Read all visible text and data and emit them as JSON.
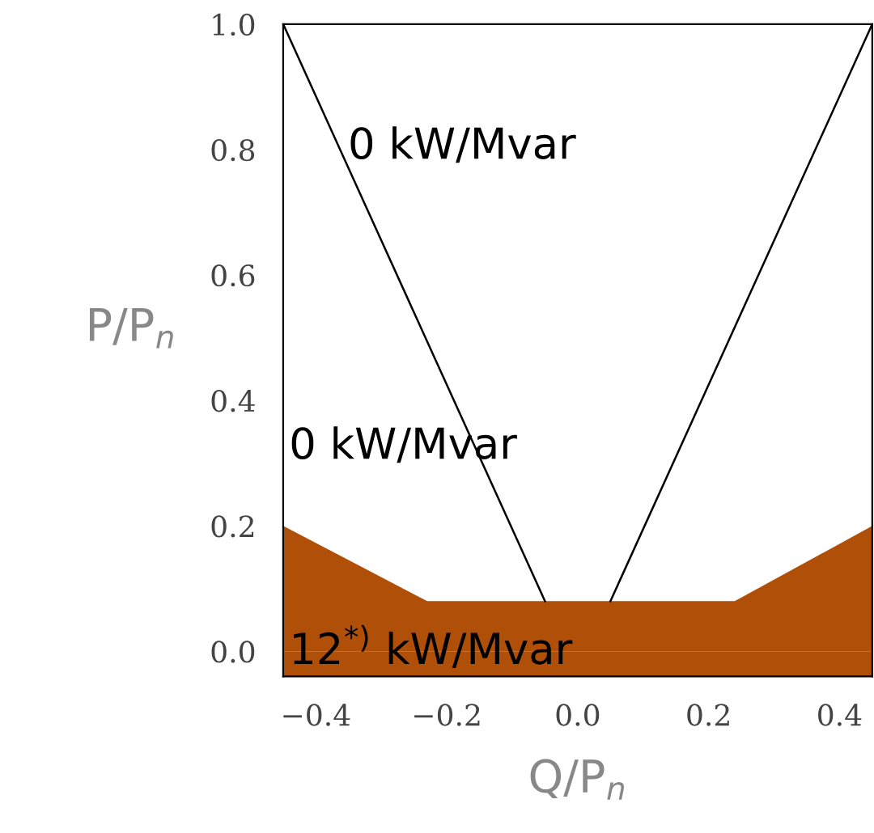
{
  "chart_data": {
    "type": "line",
    "xlabel": "Q/P$_{n}$",
    "ylabel": "P/P$_{n}$",
    "xlim": [
      -0.45,
      0.45
    ],
    "ylim": [
      -0.04,
      1.0
    ],
    "xticks": [
      {
        "value": -0.4,
        "label": "−0.4"
      },
      {
        "value": -0.2,
        "label": "−0.2"
      },
      {
        "value": 0.0,
        "label": "0.0"
      },
      0.2,
      0.4
    ],
    "yticks": [
      {
        "value": 0.0,
        "label": "0.0"
      },
      0.2,
      0.4,
      0.6,
      0.8,
      {
        "value": 1.0,
        "label": "1.0"
      }
    ],
    "series": [
      {
        "type": "area",
        "color": "#b05008",
        "x": [
          -0.45,
          -0.34,
          -0.23,
          -0.1,
          0.0,
          0.1,
          0.24,
          0.345,
          0.45
        ],
        "values": [
          0.2,
          0.14,
          0.08,
          0.08,
          0.08,
          0.08,
          0.08,
          0.14,
          0.2
        ]
      },
      {
        "color": "#000000",
        "x": [
          -0.45,
          -0.05
        ],
        "values": [
          1.0,
          0.08
        ]
      },
      {
        "color": "#000000",
        "x": [
          0.05,
          0.45
        ],
        "values": [
          0.08,
          1.0
        ]
      }
    ],
    "annotations": [
      "0 kW/Mvar",
      "0 kW/Mvar",
      "12$^{*)}$ kW/Mvar"
    ],
    "bands": [
      {
        "axis": "y",
        "from": -0.04,
        "to": 0.0,
        "color": "#b05008"
      }
    ],
    "grid": false,
    "legend": false
  }
}
